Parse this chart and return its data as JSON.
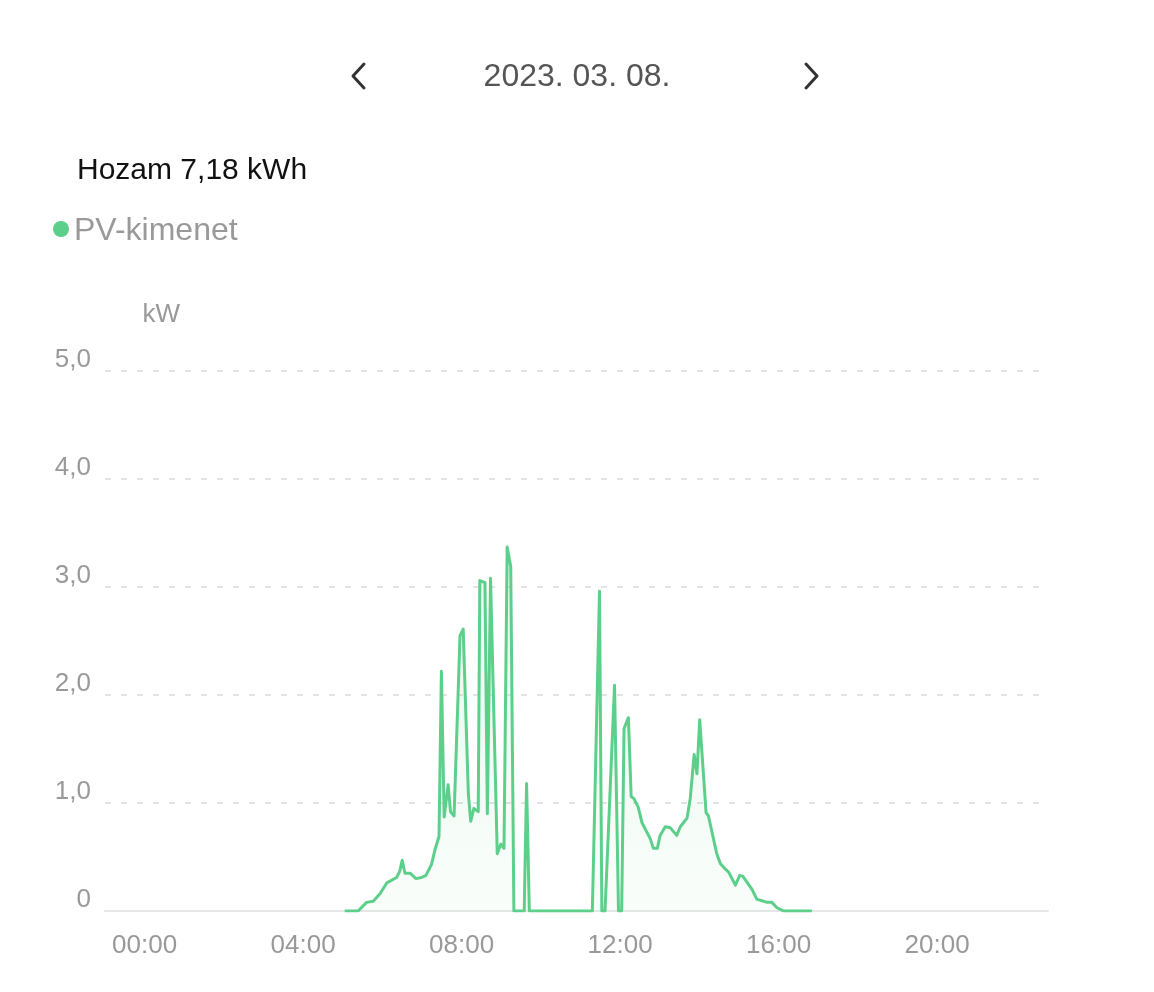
{
  "chart_data": {
    "type": "area",
    "title": "2023. 03. 08.",
    "subtitle": "Hozam 7,18 kWh",
    "ylabel": "kW",
    "x": [
      5.05,
      5.39,
      5.6,
      5.77,
      5.94,
      6.11,
      6.36,
      6.44,
      6.5,
      6.57,
      6.7,
      6.85,
      6.99,
      7.1,
      7.24,
      7.33,
      7.43,
      7.49,
      7.56,
      7.66,
      7.72,
      7.81,
      7.96,
      8.04,
      8.17,
      8.23,
      8.31,
      8.42,
      8.46,
      8.59,
      8.65,
      8.73,
      8.9,
      8.99,
      9.07,
      9.15,
      9.24,
      9.32,
      9.58,
      9.64,
      9.71,
      11.3,
      11.48,
      11.54,
      11.62,
      11.86,
      11.96,
      12.04,
      12.1,
      12.21,
      12.28,
      12.35,
      12.46,
      12.55,
      12.76,
      12.84,
      12.94,
      13.01,
      13.14,
      13.27,
      13.43,
      13.52,
      13.69,
      13.77,
      13.87,
      13.94,
      14.01,
      14.17,
      14.23,
      14.44,
      14.53,
      14.65,
      14.74,
      14.91,
      15.02,
      15.1,
      15.33,
      15.45,
      15.71,
      15.83,
      15.96,
      16.13,
      16.84
    ],
    "series": [
      {
        "name": "PV-kimenet",
        "color": "#5ccf8a",
        "values": [
          0,
          0,
          0.08,
          0.09,
          0.16,
          0.26,
          0.31,
          0.37,
          0.47,
          0.35,
          0.35,
          0.3,
          0.31,
          0.33,
          0.43,
          0.57,
          0.69,
          2.22,
          0.87,
          1.17,
          0.92,
          0.88,
          2.55,
          2.61,
          1.09,
          0.83,
          0.95,
          0.92,
          3.06,
          3.04,
          0.9,
          3.08,
          0.53,
          0.62,
          0.58,
          3.37,
          3.19,
          0,
          0,
          1.18,
          0,
          0,
          2.96,
          0,
          0,
          2.09,
          0,
          0,
          1.69,
          1.79,
          1.06,
          1.04,
          0.96,
          0.82,
          0.67,
          0.58,
          0.58,
          0.7,
          0.78,
          0.77,
          0.7,
          0.78,
          0.86,
          1.04,
          1.45,
          1.27,
          1.77,
          0.91,
          0.88,
          0.53,
          0.44,
          0.39,
          0.36,
          0.24,
          0.33,
          0.32,
          0.2,
          0.11,
          0.08,
          0.08,
          0.03,
          0,
          0
        ]
      }
    ],
    "xlim": [
      -1,
      22.8
    ],
    "xticks": [
      {
        "value": 0,
        "label": "00:00"
      },
      {
        "value": 4,
        "label": "04:00"
      },
      {
        "value": 8,
        "label": "08:00"
      },
      {
        "value": 12,
        "label": "12:00"
      },
      {
        "value": 16,
        "label": "16:00"
      },
      {
        "value": 20,
        "label": "20:00"
      }
    ],
    "ylim": [
      0,
      5
    ],
    "yticks": [
      {
        "value": 0,
        "label": "0"
      },
      {
        "value": 1,
        "label": "1,0"
      },
      {
        "value": 2,
        "label": "2,0"
      },
      {
        "value": 3,
        "label": "3,0"
      },
      {
        "value": 4,
        "label": "4,0"
      },
      {
        "value": 5,
        "label": "5,0"
      }
    ],
    "grid": "y",
    "legend": "top left",
    "marker": "none",
    "line_style": "solid"
  }
}
